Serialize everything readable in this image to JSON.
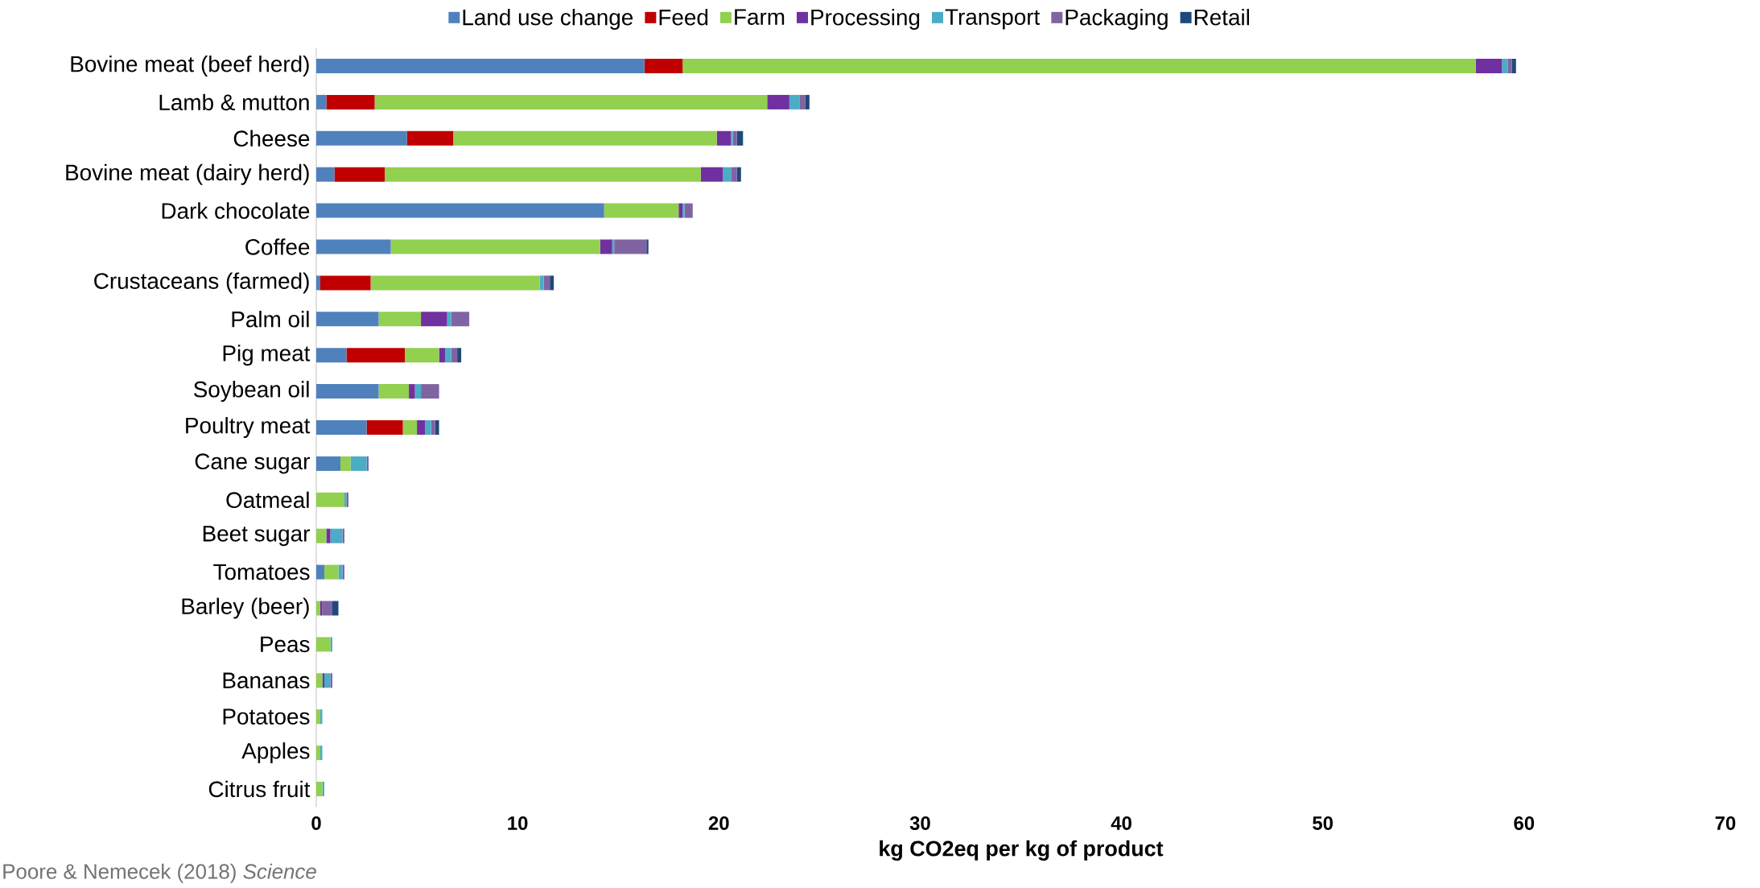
{
  "chart_data": {
    "type": "bar",
    "orientation": "horizontal",
    "stacked": true,
    "legend": "top",
    "xlabel": "kg CO2eq per kg of product",
    "xlim": [
      0,
      70
    ],
    "xticks": [
      0,
      10,
      20,
      30,
      40,
      50,
      60,
      70
    ],
    "annotations": [
      "Poore & Nemecek (2018) *Science*"
    ],
    "categories": [
      "Bovine meat (beef herd)",
      "Lamb & mutton",
      "Cheese",
      "Bovine meat (dairy herd)",
      "Dark chocolate",
      "Coffee",
      "Crustaceans (farmed)",
      "Palm oil",
      "Pig meat",
      "Soybean oil",
      "Poultry meat",
      "Cane sugar",
      "Oatmeal",
      "Beet sugar",
      "Tomatoes",
      "Barley (beer)",
      "Peas",
      "Bananas",
      "Potatoes",
      "Apples",
      "Citrus fruit"
    ],
    "series": [
      {
        "name": "Land use change",
        "color": "#4f81bd",
        "values": [
          16.3,
          0.5,
          4.5,
          0.9,
          14.3,
          3.7,
          0.2,
          3.1,
          1.5,
          3.1,
          2.5,
          1.2,
          0,
          0,
          0.4,
          0,
          0,
          0,
          0,
          0,
          0
        ]
      },
      {
        "name": "Feed",
        "color": "#c00000",
        "values": [
          1.9,
          2.4,
          2.3,
          2.5,
          0,
          0,
          2.5,
          0,
          2.9,
          0,
          1.8,
          0,
          0,
          0,
          0,
          0,
          0,
          0,
          0,
          0,
          0
        ]
      },
      {
        "name": "Farm",
        "color": "#92d050",
        "values": [
          39.4,
          19.5,
          13.1,
          15.7,
          3.7,
          10.4,
          8.4,
          2.1,
          1.7,
          1.5,
          0.7,
          0.5,
          1.4,
          0.5,
          0.7,
          0.2,
          0.7,
          0.3,
          0.2,
          0.2,
          0.3
        ]
      },
      {
        "name": "Processing",
        "color": "#7030a0",
        "values": [
          1.3,
          1.1,
          0.7,
          1.1,
          0.2,
          0.6,
          0,
          1.3,
          0.3,
          0.3,
          0.4,
          0,
          0,
          0.2,
          0,
          0.1,
          0,
          0.1,
          0,
          0,
          0
        ]
      },
      {
        "name": "Transport",
        "color": "#4bacc6",
        "values": [
          0.3,
          0.5,
          0.1,
          0.4,
          0.1,
          0.1,
          0.2,
          0.2,
          0.3,
          0.3,
          0.3,
          0.8,
          0.1,
          0.6,
          0.2,
          0,
          0.1,
          0.3,
          0.1,
          0.1,
          0.1
        ]
      },
      {
        "name": "Packaging",
        "color": "#8064a2",
        "values": [
          0.2,
          0.3,
          0.2,
          0.3,
          0.4,
          1.6,
          0.3,
          0.9,
          0.3,
          0.9,
          0.2,
          0.1,
          0.1,
          0.1,
          0.1,
          0.5,
          0,
          0.1,
          0,
          0,
          0
        ]
      },
      {
        "name": "Retail",
        "color": "#1f497d",
        "values": [
          0.2,
          0.2,
          0.3,
          0.2,
          0,
          0.1,
          0.2,
          0,
          0.2,
          0,
          0.2,
          0,
          0,
          0,
          0,
          0.3,
          0,
          0,
          0,
          0,
          0
        ]
      }
    ]
  }
}
